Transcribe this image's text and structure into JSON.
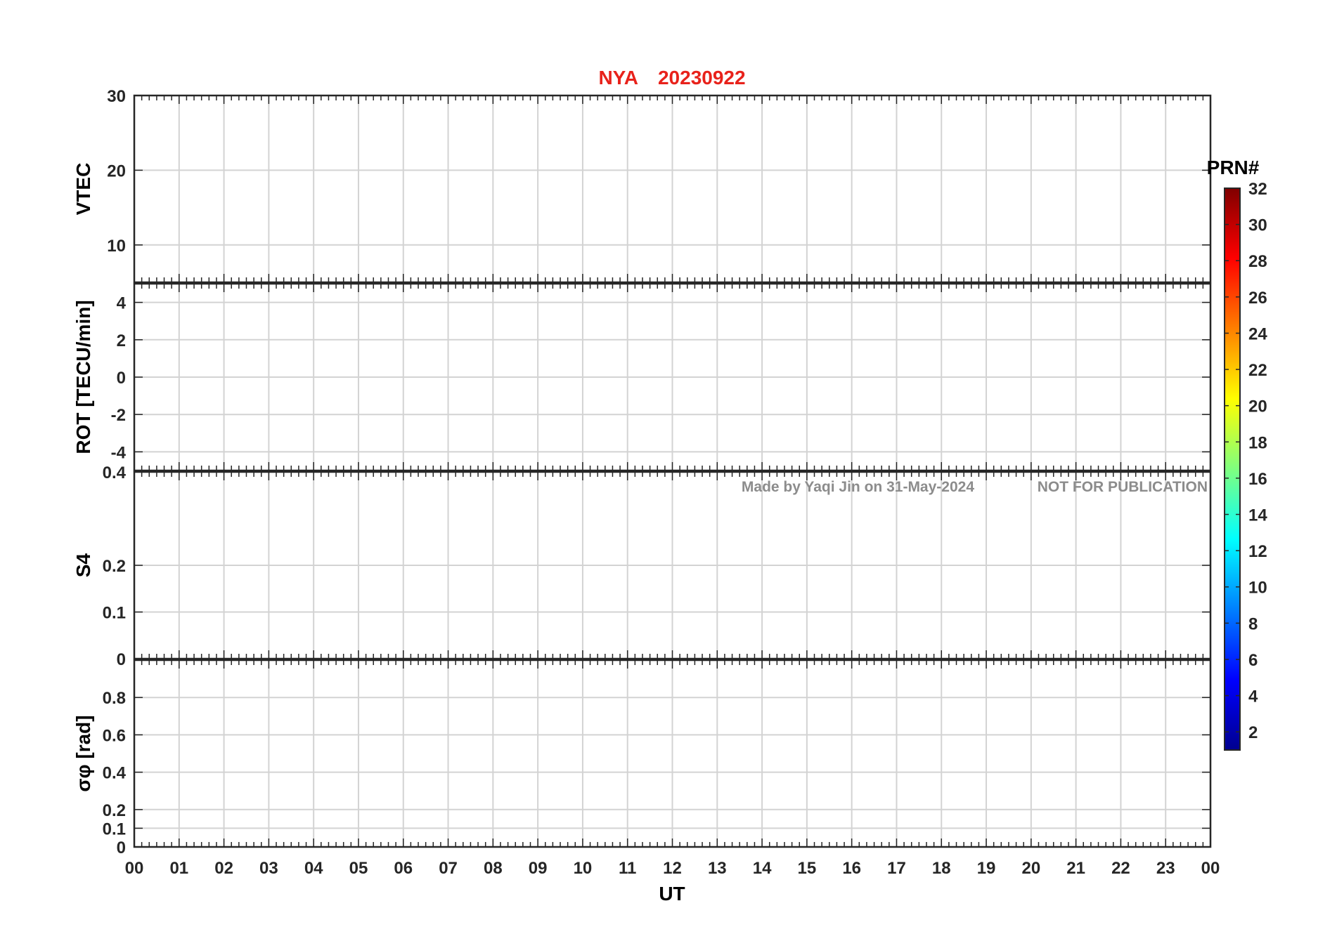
{
  "colors": {
    "title": "#e8221b",
    "grid": "#d3d3d3",
    "axis": "#262626",
    "note": "#8c8c8c"
  },
  "title": {
    "station": "NYA",
    "date": "20230922"
  },
  "notes": {
    "author": "Made by Yaqi Jin on 31-May-2024",
    "status": "NOT FOR PUBLICATION"
  },
  "colorbar": {
    "label": "PRN#",
    "ticks": [
      "2",
      "4",
      "6",
      "8",
      "10",
      "12",
      "14",
      "16",
      "18",
      "20",
      "22",
      "24",
      "26",
      "28",
      "30",
      "32"
    ],
    "colormap": "jet"
  },
  "chart_data": {
    "type": "line",
    "x_axis": {
      "label": "UT",
      "range": [
        0,
        24
      ],
      "tick_labels": [
        "00",
        "01",
        "02",
        "03",
        "04",
        "05",
        "06",
        "07",
        "08",
        "09",
        "10",
        "11",
        "12",
        "13",
        "14",
        "15",
        "16",
        "17",
        "18",
        "19",
        "20",
        "21",
        "22",
        "23",
        "00"
      ]
    },
    "legend": "colorbar-right",
    "grid": true,
    "panels": [
      {
        "id": "vtec",
        "ylabel": "VTEC",
        "ylim": [
          5,
          30
        ],
        "ytick_labels": [
          "10",
          "20",
          "30"
        ]
      },
      {
        "id": "rot",
        "ylabel": "ROT [TECU/min]",
        "ylim": [
          -5,
          5
        ],
        "ytick_labels": [
          "-4",
          "-2",
          "0",
          "2",
          "4"
        ]
      },
      {
        "id": "s4",
        "ylabel": "S4",
        "ylim": [
          0,
          0.4
        ],
        "ytick_labels": [
          "0",
          "0.1",
          "0.2",
          "0.4"
        ]
      },
      {
        "id": "sigma",
        "ylabel": "σφ [rad]",
        "ylim": [
          0,
          1
        ],
        "ytick_labels": [
          "0",
          "0.1",
          "0.2",
          "0.4",
          "0.6",
          "0.8"
        ]
      }
    ]
  }
}
